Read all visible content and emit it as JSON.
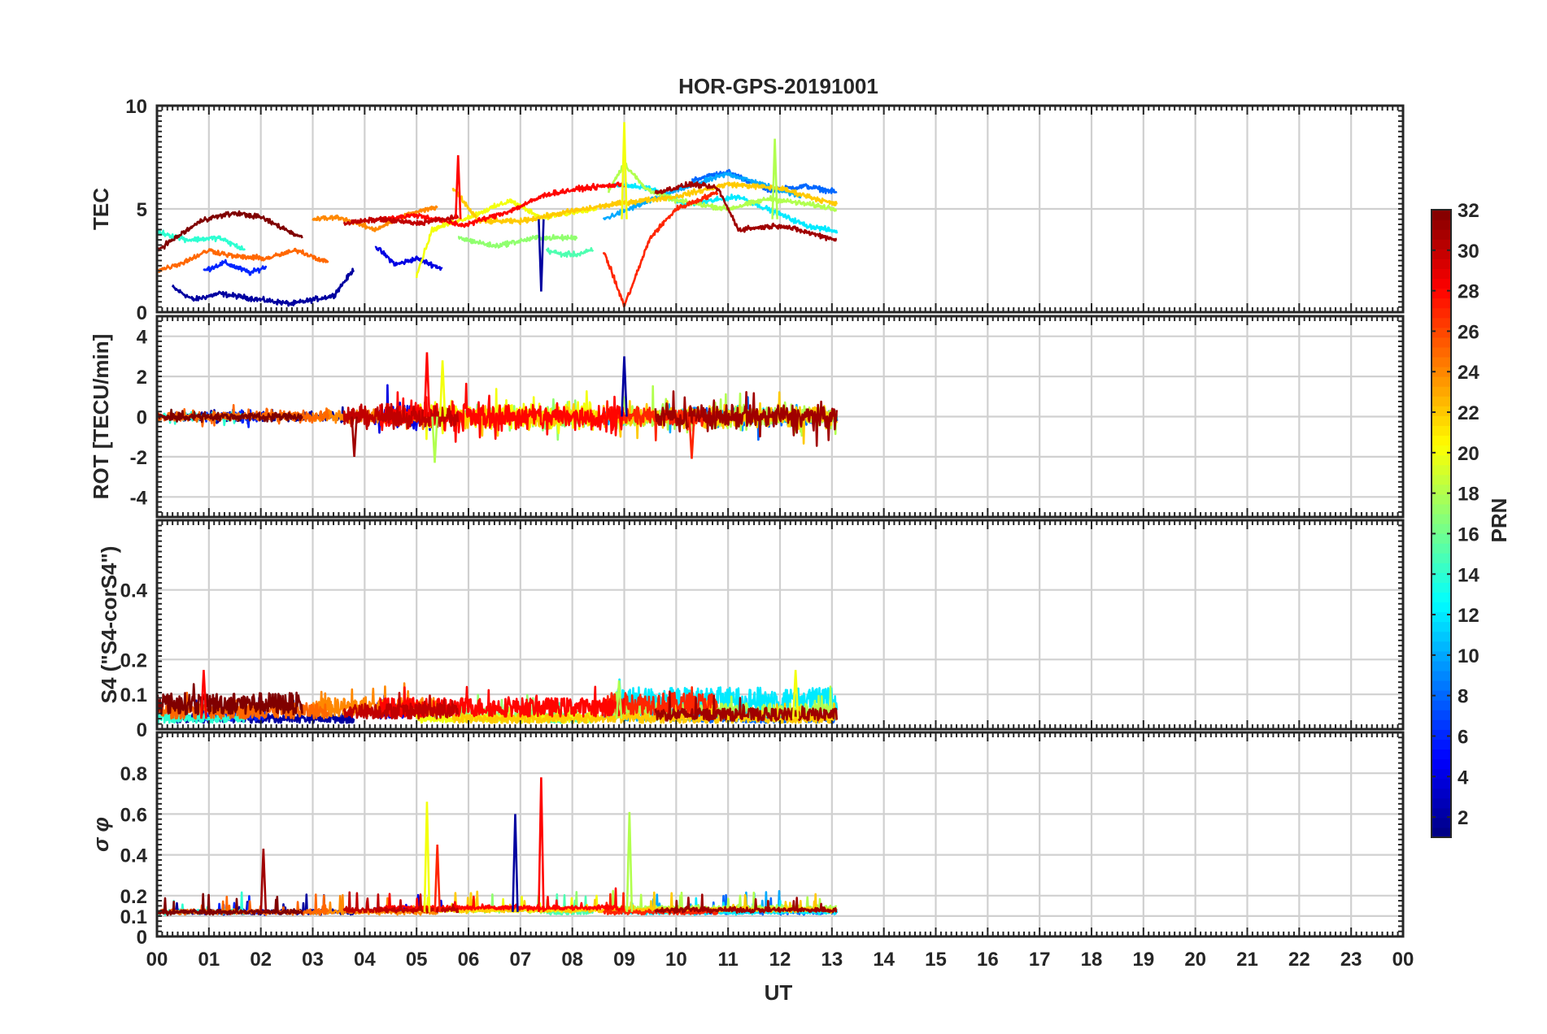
{
  "chart_data": {
    "type": "line",
    "title": "HOR-GPS-20191001",
    "xlabel": "UT",
    "x_ticks": [
      "00",
      "01",
      "02",
      "03",
      "04",
      "05",
      "06",
      "07",
      "08",
      "09",
      "10",
      "11",
      "12",
      "13",
      "14",
      "15",
      "16",
      "17",
      "18",
      "19",
      "20",
      "21",
      "22",
      "23",
      "00"
    ],
    "xlim_hours": [
      0,
      24
    ],
    "data_extent_hours": [
      0,
      13.1
    ],
    "grid": true,
    "panels": [
      {
        "key": "tec",
        "ylabel": "TEC",
        "ylim": [
          0,
          10
        ],
        "yticks": [
          "0",
          "5",
          "10"
        ],
        "ytick_values": [
          0,
          5,
          10
        ]
      },
      {
        "key": "rot",
        "ylabel": "ROT [TECU/min]",
        "ylim": [
          -5,
          5
        ],
        "yticks": [
          "-4",
          "-2",
          "0",
          "2",
          "4"
        ],
        "ytick_values": [
          -4,
          -2,
          0,
          2,
          4
        ]
      },
      {
        "key": "s4",
        "ylabel": "S4 (\"S4-corS4\")",
        "ylim": [
          0,
          0.6
        ],
        "yticks": [
          "0",
          "0.1",
          "0.2",
          "0.4"
        ],
        "ytick_values": [
          0,
          0.1,
          0.2,
          0.4
        ]
      },
      {
        "key": "sigma",
        "ylabel": "σ φ",
        "ylim": [
          0,
          1
        ],
        "yticks": [
          "0",
          "0.1",
          "0.2",
          "0.4",
          "0.6",
          "0.8"
        ],
        "ytick_values": [
          0,
          0.1,
          0.2,
          0.4,
          0.6,
          0.8
        ]
      }
    ],
    "colorbar": {
      "label": "PRN",
      "range": [
        1,
        32
      ],
      "ticks": [
        "2",
        "4",
        "6",
        "8",
        "10",
        "12",
        "14",
        "16",
        "18",
        "20",
        "22",
        "24",
        "26",
        "28",
        "30",
        "32"
      ],
      "tick_values": [
        2,
        4,
        6,
        8,
        10,
        12,
        14,
        16,
        18,
        20,
        22,
        24,
        26,
        28,
        30,
        32
      ]
    },
    "series": [
      {
        "prn": 2,
        "tec": [
          [
            0.3,
            1.2
          ],
          [
            0.7,
            0.6
          ],
          [
            1.2,
            0.9
          ],
          [
            2.0,
            0.6
          ],
          [
            2.6,
            0.4
          ],
          [
            3.4,
            0.8
          ],
          [
            3.8,
            2.1
          ]
        ],
        "rot_amp": 0.35,
        "s4_base": 0.03,
        "sigma_base": 0.12
      },
      {
        "prn": 4,
        "tec": [
          [
            4.2,
            3.2
          ],
          [
            4.6,
            2.3
          ],
          [
            5.0,
            2.6
          ],
          [
            5.5,
            2.1
          ]
        ],
        "rot_amp": 0.9,
        "s4_base": 0.05,
        "sigma_base": 0.13
      },
      {
        "prn": 6,
        "tec": [
          [
            0.9,
            2.0
          ],
          [
            1.3,
            2.4
          ],
          [
            1.8,
            1.9
          ],
          [
            2.1,
            2.2
          ]
        ],
        "rot_amp": 0.4,
        "s4_base": 0.04,
        "sigma_base": 0.12
      },
      {
        "prn": 8,
        "tec": [
          [
            10.3,
            6.4
          ],
          [
            11.0,
            6.8
          ],
          [
            11.8,
            5.9
          ],
          [
            12.5,
            6.1
          ],
          [
            13.1,
            5.8
          ]
        ],
        "rot_amp": 0.6,
        "s4_base": 0.03,
        "sigma_base": 0.12
      },
      {
        "prn": 10,
        "tec": [
          [
            8.6,
            4.5
          ],
          [
            9.3,
            5.2
          ],
          [
            10.0,
            5.9
          ],
          [
            11.0,
            6.7
          ],
          [
            12.4,
            5.6
          ]
        ],
        "rot_amp": 0.5,
        "s4_base": 0.04,
        "sigma_base": 0.13
      },
      {
        "prn": 12,
        "tec": [
          [
            8.8,
            6.2
          ],
          [
            9.5,
            6.0
          ],
          [
            10.2,
            5.2
          ],
          [
            11.2,
            5.6
          ],
          [
            12.5,
            4.2
          ],
          [
            13.1,
            3.9
          ]
        ],
        "rot_amp": 0.4,
        "s4_base": 0.08,
        "sigma_base": 0.12
      },
      {
        "prn": 14,
        "tec": [
          [
            0.0,
            3.9
          ],
          [
            0.6,
            3.5
          ],
          [
            1.2,
            3.6
          ],
          [
            1.7,
            3.0
          ]
        ],
        "rot_amp": 0.3,
        "s4_base": 0.03,
        "sigma_base": 0.12
      },
      {
        "prn": 15,
        "tec": [
          [
            7.5,
            3.0
          ],
          [
            7.8,
            2.8
          ],
          [
            8.1,
            2.8
          ],
          [
            8.4,
            3.0
          ]
        ],
        "rot_amp": 0.5,
        "s4_base": 0.03,
        "sigma_base": 0.12
      },
      {
        "prn": 17,
        "tec": [
          [
            5.8,
            3.6
          ],
          [
            6.5,
            3.2
          ],
          [
            7.3,
            3.6
          ],
          [
            8.1,
            3.6
          ]
        ],
        "rot_amp": 0.7,
        "s4_base": 0.04,
        "sigma_base": 0.13
      },
      {
        "prn": 18,
        "tec": [
          [
            8.7,
            5.9
          ],
          [
            9.0,
            7.2
          ],
          [
            9.4,
            6.0
          ],
          [
            10.0,
            5.4
          ],
          [
            11.0,
            5.0
          ],
          [
            11.8,
            5.5
          ],
          [
            12.6,
            5.2
          ],
          [
            13.1,
            5.0
          ]
        ],
        "rot_amp": 0.8,
        "s4_base": 0.05,
        "sigma_base": 0.14
      },
      {
        "prn": 20,
        "tec": [
          [
            5.0,
            1.8
          ],
          [
            5.3,
            4.0
          ],
          [
            6.0,
            4.6
          ],
          [
            6.8,
            5.4
          ],
          [
            7.4,
            4.6
          ],
          [
            8.5,
            5.0
          ]
        ],
        "rot_amp": 0.9,
        "s4_base": 0.03,
        "sigma_base": 0.13
      },
      {
        "prn": 22,
        "tec": [
          [
            5.7,
            6.0
          ],
          [
            6.2,
            4.4
          ],
          [
            7.0,
            4.4
          ],
          [
            8.0,
            4.9
          ],
          [
            9.0,
            5.3
          ],
          [
            10.0,
            5.6
          ],
          [
            11.0,
            6.2
          ],
          [
            12.0,
            6.0
          ],
          [
            13.1,
            5.2
          ]
        ],
        "rot_amp": 0.8,
        "s4_base": 0.03,
        "sigma_base": 0.13
      },
      {
        "prn": 24,
        "tec": [
          [
            3.0,
            4.5
          ],
          [
            3.5,
            4.6
          ],
          [
            4.2,
            4.0
          ],
          [
            4.8,
            4.7
          ],
          [
            5.4,
            5.1
          ]
        ],
        "rot_amp": 0.5,
        "s4_base": 0.06,
        "sigma_base": 0.12
      },
      {
        "prn": 25,
        "tec": [
          [
            0.0,
            2.0
          ],
          [
            0.5,
            2.4
          ],
          [
            1.0,
            3.0
          ],
          [
            1.5,
            2.7
          ],
          [
            2.1,
            2.6
          ],
          [
            2.7,
            3.0
          ],
          [
            3.3,
            2.4
          ]
        ],
        "rot_amp": 0.4,
        "s4_base": 0.05,
        "sigma_base": 0.12
      },
      {
        "prn": 27,
        "tec": [
          [
            8.6,
            3.0
          ],
          [
            9.0,
            0.3
          ],
          [
            9.2,
            1.6
          ],
          [
            9.5,
            3.6
          ],
          [
            10.0,
            5.0
          ],
          [
            10.8,
            5.8
          ]
        ],
        "rot_amp": 0.6,
        "s4_base": 0.07,
        "sigma_base": 0.12
      },
      {
        "prn": 28,
        "tec": [
          [
            4.3,
            4.5
          ],
          [
            5.0,
            4.7
          ],
          [
            5.9,
            4.2
          ],
          [
            6.8,
            4.9
          ],
          [
            7.5,
            5.7
          ],
          [
            8.2,
            6.0
          ],
          [
            9.0,
            6.2
          ]
        ],
        "rot_amp": 1.0,
        "s4_base": 0.06,
        "sigma_base": 0.14
      },
      {
        "prn": 30,
        "tec": [
          [
            3.6,
            4.3
          ],
          [
            4.3,
            4.5
          ],
          [
            5.0,
            4.3
          ],
          [
            5.8,
            4.6
          ]
        ],
        "rot_amp": 0.8,
        "s4_base": 0.05,
        "sigma_base": 0.13
      },
      {
        "prn": 32,
        "tec": [
          [
            0.0,
            3.0
          ],
          [
            0.9,
            4.5
          ],
          [
            1.5,
            4.8
          ],
          [
            2.0,
            4.6
          ],
          [
            2.8,
            3.6
          ]
        ],
        "rot_amp": 0.3,
        "s4_base": 0.07,
        "sigma_base": 0.12
      },
      {
        "prn": 31,
        "tec": [
          [
            9.6,
            5.8
          ],
          [
            10.3,
            6.2
          ],
          [
            10.8,
            6.0
          ],
          [
            11.2,
            4.0
          ],
          [
            12.0,
            4.2
          ],
          [
            13.1,
            3.5
          ]
        ],
        "rot_amp": 0.9,
        "s4_base": 0.04,
        "sigma_base": 0.13
      }
    ],
    "annotations": {
      "tec_spikes": [
        [
          5.8,
          7.6
        ],
        [
          9.0,
          9.2
        ],
        [
          11.9,
          8.4
        ],
        [
          7.4,
          1.0
        ]
      ],
      "rot_spikes": [
        [
          5.2,
          3.2
        ],
        [
          5.5,
          2.8
        ],
        [
          5.35,
          -2.3
        ],
        [
          9.0,
          3.0
        ],
        [
          10.3,
          -2.1
        ],
        [
          3.8,
          -2.0
        ]
      ],
      "s4_spikes": [
        [
          0.9,
          0.17
        ],
        [
          12.3,
          0.17
        ],
        [
          8.9,
          0.14
        ]
      ],
      "sigma_spikes": [
        [
          7.4,
          0.78
        ],
        [
          5.2,
          0.66
        ],
        [
          9.1,
          0.61
        ],
        [
          6.9,
          0.6
        ],
        [
          5.4,
          0.45
        ],
        [
          2.05,
          0.43
        ]
      ]
    }
  }
}
